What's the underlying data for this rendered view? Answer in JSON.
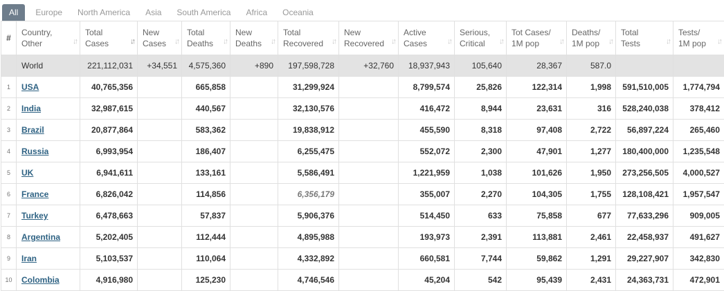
{
  "tabs": [
    "All",
    "Europe",
    "North America",
    "Asia",
    "South America",
    "Africa",
    "Oceania"
  ],
  "headers": {
    "num": "#",
    "country": [
      "Country,",
      "Other"
    ],
    "total_cases": [
      "Total",
      "Cases"
    ],
    "new_cases": [
      "New",
      "Cases"
    ],
    "total_deaths": [
      "Total",
      "Deaths"
    ],
    "new_deaths": [
      "New",
      "Deaths"
    ],
    "total_recovered": [
      "Total",
      "Recovered"
    ],
    "new_recovered": [
      "New",
      "Recovered"
    ],
    "active_cases": [
      "Active",
      "Cases"
    ],
    "serious": [
      "Serious,",
      "Critical"
    ],
    "cases_per_m": [
      "Tot Cases/",
      "1M pop"
    ],
    "deaths_per_m": [
      "Deaths/",
      "1M pop"
    ],
    "total_tests": [
      "Total",
      "Tests"
    ],
    "tests_per_m": [
      "Tests/",
      "1M pop"
    ]
  },
  "world": {
    "country": "World",
    "total_cases": "221,112,031",
    "new_cases": "+34,551",
    "total_deaths": "4,575,360",
    "new_deaths": "+890",
    "total_recovered": "197,598,728",
    "new_recovered": "+32,760",
    "active_cases": "18,937,943",
    "serious": "105,640",
    "cases_per_m": "28,367",
    "deaths_per_m": "587.0",
    "total_tests": "",
    "tests_per_m": ""
  },
  "rows": [
    {
      "idx": "1",
      "country": "USA",
      "total_cases": "40,765,356",
      "new_cases": "",
      "total_deaths": "665,858",
      "new_deaths": "",
      "total_recovered": "31,299,924",
      "new_recovered": "",
      "active_cases": "8,799,574",
      "serious": "25,826",
      "cases_per_m": "122,314",
      "deaths_per_m": "1,998",
      "total_tests": "591,510,005",
      "tests_per_m": "1,774,794"
    },
    {
      "idx": "2",
      "country": "India",
      "total_cases": "32,987,615",
      "new_cases": "",
      "total_deaths": "440,567",
      "new_deaths": "",
      "total_recovered": "32,130,576",
      "new_recovered": "",
      "active_cases": "416,472",
      "serious": "8,944",
      "cases_per_m": "23,631",
      "deaths_per_m": "316",
      "total_tests": "528,240,038",
      "tests_per_m": "378,412"
    },
    {
      "idx": "3",
      "country": "Brazil",
      "total_cases": "20,877,864",
      "new_cases": "",
      "total_deaths": "583,362",
      "new_deaths": "",
      "total_recovered": "19,838,912",
      "new_recovered": "",
      "active_cases": "455,590",
      "serious": "8,318",
      "cases_per_m": "97,408",
      "deaths_per_m": "2,722",
      "total_tests": "56,897,224",
      "tests_per_m": "265,460"
    },
    {
      "idx": "4",
      "country": "Russia",
      "total_cases": "6,993,954",
      "new_cases": "",
      "total_deaths": "186,407",
      "new_deaths": "",
      "total_recovered": "6,255,475",
      "new_recovered": "",
      "active_cases": "552,072",
      "serious": "2,300",
      "cases_per_m": "47,901",
      "deaths_per_m": "1,277",
      "total_tests": "180,400,000",
      "tests_per_m": "1,235,548"
    },
    {
      "idx": "5",
      "country": "UK",
      "total_cases": "6,941,611",
      "new_cases": "",
      "total_deaths": "133,161",
      "new_deaths": "",
      "total_recovered": "5,586,491",
      "new_recovered": "",
      "active_cases": "1,221,959",
      "serious": "1,038",
      "cases_per_m": "101,626",
      "deaths_per_m": "1,950",
      "total_tests": "273,256,505",
      "tests_per_m": "4,000,527"
    },
    {
      "idx": "6",
      "country": "France",
      "total_cases": "6,826,042",
      "new_cases": "",
      "total_deaths": "114,856",
      "new_deaths": "",
      "total_recovered": "6,356,179",
      "recovered_style": "italic",
      "new_recovered": "",
      "active_cases": "355,007",
      "serious": "2,270",
      "cases_per_m": "104,305",
      "deaths_per_m": "1,755",
      "total_tests": "128,108,421",
      "tests_per_m": "1,957,547"
    },
    {
      "idx": "7",
      "country": "Turkey",
      "total_cases": "6,478,663",
      "new_cases": "",
      "total_deaths": "57,837",
      "new_deaths": "",
      "total_recovered": "5,906,376",
      "new_recovered": "",
      "active_cases": "514,450",
      "serious": "633",
      "cases_per_m": "75,858",
      "deaths_per_m": "677",
      "total_tests": "77,633,296",
      "tests_per_m": "909,005"
    },
    {
      "idx": "8",
      "country": "Argentina",
      "total_cases": "5,202,405",
      "new_cases": "",
      "total_deaths": "112,444",
      "new_deaths": "",
      "total_recovered": "4,895,988",
      "new_recovered": "",
      "active_cases": "193,973",
      "serious": "2,391",
      "cases_per_m": "113,881",
      "deaths_per_m": "2,461",
      "total_tests": "22,458,937",
      "tests_per_m": "491,627"
    },
    {
      "idx": "9",
      "country": "Iran",
      "total_cases": "5,103,537",
      "new_cases": "",
      "total_deaths": "110,064",
      "new_deaths": "",
      "total_recovered": "4,332,892",
      "new_recovered": "",
      "active_cases": "660,581",
      "serious": "7,744",
      "cases_per_m": "59,862",
      "deaths_per_m": "1,291",
      "total_tests": "29,227,907",
      "tests_per_m": "342,830"
    },
    {
      "idx": "10",
      "country": "Colombia",
      "total_cases": "4,916,980",
      "new_cases": "",
      "total_deaths": "125,230",
      "new_deaths": "",
      "total_recovered": "4,746,546",
      "new_recovered": "",
      "active_cases": "45,204",
      "serious": "542",
      "cases_per_m": "95,439",
      "deaths_per_m": "2,431",
      "total_tests": "24,363,731",
      "tests_per_m": "472,901"
    }
  ],
  "sort_icon": "sort-arrows-icon"
}
